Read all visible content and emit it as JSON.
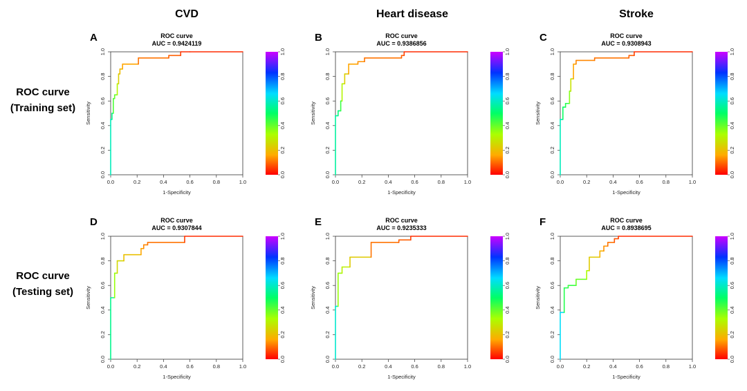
{
  "column_titles": [
    "CVD",
    "Heart disease",
    "Stroke"
  ],
  "row_titles": [
    {
      "line1": "ROC curve",
      "line2": "(Training set)"
    },
    {
      "line1": "ROC curve",
      "line2": "(Testing set)"
    }
  ],
  "chart_data": [
    {
      "type": "line",
      "panel": "A",
      "title": "ROC curve",
      "subtitle": "AUC = 0.9424119",
      "xlabel": "1-Specificity",
      "ylabel": "Sensitivity",
      "xlim": [
        0,
        1
      ],
      "ylim": [
        0,
        1
      ],
      "xticks": [
        "0.0",
        "0.2",
        "0.4",
        "0.6",
        "0.8",
        "1.0"
      ],
      "yticks": [
        "0.0",
        "0.2",
        "0.4",
        "0.6",
        "0.8",
        "1.0"
      ],
      "colorbar": {
        "ticks": [
          "0.0",
          "0.2",
          "0.4",
          "0.6",
          "0.8",
          "1.0"
        ],
        "palette": "rainbow"
      },
      "series": [
        {
          "x": [
            0,
            0,
            0.01,
            0.01,
            0.02,
            0.02,
            0.03,
            0.03,
            0.05,
            0.05,
            0.06,
            0.06,
            0.07,
            0.07,
            0.09,
            0.09,
            0.13,
            0.13,
            0.21,
            0.21,
            0.44,
            0.44,
            0.53,
            0.53,
            0.6,
            1.0
          ],
          "y": [
            0,
            0.45,
            0.45,
            0.5,
            0.5,
            0.62,
            0.62,
            0.65,
            0.65,
            0.74,
            0.74,
            0.82,
            0.82,
            0.86,
            0.86,
            0.9,
            0.9,
            0.9,
            0.9,
            0.95,
            0.95,
            0.97,
            0.97,
            1.0,
            1.0,
            1.0
          ]
        }
      ]
    },
    {
      "type": "line",
      "panel": "B",
      "title": "ROC curve",
      "subtitle": "AUC = 0.9386856",
      "xlabel": "1-Specificity",
      "ylabel": "Sensitivity",
      "xlim": [
        0,
        1
      ],
      "ylim": [
        0,
        1
      ],
      "xticks": [
        "0.0",
        "0.2",
        "0.4",
        "0.6",
        "0.8",
        "1.0"
      ],
      "yticks": [
        "0.0",
        "0.2",
        "0.4",
        "0.6",
        "0.8",
        "1.0"
      ],
      "colorbar": {
        "ticks": [
          "0.0",
          "0.2",
          "0.4",
          "0.6",
          "0.8",
          "1.0"
        ],
        "palette": "rainbow"
      },
      "series": [
        {
          "x": [
            0,
            0,
            0.02,
            0.02,
            0.04,
            0.04,
            0.05,
            0.05,
            0.07,
            0.07,
            0.1,
            0.1,
            0.17,
            0.17,
            0.22,
            0.22,
            0.5,
            0.5,
            0.52,
            0.52,
            1.0
          ],
          "y": [
            0,
            0.48,
            0.48,
            0.52,
            0.52,
            0.6,
            0.6,
            0.74,
            0.74,
            0.82,
            0.82,
            0.9,
            0.9,
            0.92,
            0.92,
            0.95,
            0.95,
            0.97,
            0.97,
            1.0,
            1.0
          ]
        }
      ]
    },
    {
      "type": "line",
      "panel": "C",
      "title": "ROC curve",
      "subtitle": "AUC = 0.9308943",
      "xlabel": "1-Specificity",
      "ylabel": "Sensitivity",
      "xlim": [
        0,
        1
      ],
      "ylim": [
        0,
        1
      ],
      "xticks": [
        "0.0",
        "0.2",
        "0.4",
        "0.6",
        "0.8",
        "1.0"
      ],
      "yticks": [
        "0.0",
        "0.2",
        "0.4",
        "0.6",
        "0.8",
        "1.0"
      ],
      "colorbar": {
        "ticks": [
          "0.0",
          "0.2",
          "0.4",
          "0.6",
          "0.8",
          "1.0"
        ],
        "palette": "rainbow"
      },
      "series": [
        {
          "x": [
            0,
            0,
            0.02,
            0.02,
            0.04,
            0.04,
            0.07,
            0.07,
            0.08,
            0.08,
            0.1,
            0.1,
            0.12,
            0.12,
            0.26,
            0.26,
            0.52,
            0.52,
            0.56,
            0.56,
            1.0
          ],
          "y": [
            0,
            0.45,
            0.45,
            0.55,
            0.55,
            0.58,
            0.58,
            0.68,
            0.68,
            0.78,
            0.78,
            0.9,
            0.9,
            0.93,
            0.93,
            0.95,
            0.95,
            0.97,
            0.97,
            1.0,
            1.0
          ]
        }
      ]
    },
    {
      "type": "line",
      "panel": "D",
      "title": "ROC curve",
      "subtitle": "AUC = 0.9307844",
      "xlabel": "1-Specificity",
      "ylabel": "Sensitivity",
      "xlim": [
        0,
        1
      ],
      "ylim": [
        0,
        1
      ],
      "xticks": [
        "0.0",
        "0.2",
        "0.4",
        "0.6",
        "0.8",
        "1.0"
      ],
      "yticks": [
        "0.0",
        "0.2",
        "0.4",
        "0.6",
        "0.8",
        "1.0"
      ],
      "colorbar": {
        "ticks": [
          "0.0",
          "0.2",
          "0.4",
          "0.6",
          "0.8",
          "1.0"
        ],
        "palette": "rainbow"
      },
      "series": [
        {
          "x": [
            0,
            0,
            0.03,
            0.03,
            0.05,
            0.05,
            0.1,
            0.1,
            0.23,
            0.23,
            0.25,
            0.25,
            0.28,
            0.28,
            0.56,
            0.56,
            1.0
          ],
          "y": [
            0,
            0.5,
            0.5,
            0.7,
            0.7,
            0.8,
            0.8,
            0.85,
            0.85,
            0.9,
            0.9,
            0.93,
            0.93,
            0.95,
            0.95,
            1.0,
            1.0
          ]
        }
      ]
    },
    {
      "type": "line",
      "panel": "E",
      "title": "ROC curve",
      "subtitle": "AUC = 0.9235333",
      "xlabel": "1-Specificity",
      "ylabel": "Sensitivity",
      "xlim": [
        0,
        1
      ],
      "ylim": [
        0,
        1
      ],
      "xticks": [
        "0.0",
        "0.2",
        "0.4",
        "0.6",
        "0.8",
        "1.0"
      ],
      "yticks": [
        "0.0",
        "0.2",
        "0.4",
        "0.6",
        "0.8",
        "1.0"
      ],
      "colorbar": {
        "ticks": [
          "0.0",
          "0.2",
          "0.4",
          "0.6",
          "0.8",
          "1.0"
        ],
        "palette": "rainbow"
      },
      "series": [
        {
          "x": [
            0,
            0,
            0.02,
            0.02,
            0.05,
            0.05,
            0.11,
            0.11,
            0.27,
            0.27,
            0.48,
            0.48,
            0.57,
            0.57,
            1.0
          ],
          "y": [
            0,
            0.43,
            0.43,
            0.7,
            0.7,
            0.75,
            0.75,
            0.83,
            0.83,
            0.95,
            0.95,
            0.97,
            0.97,
            1.0,
            1.0
          ]
        }
      ]
    },
    {
      "type": "line",
      "panel": "F",
      "title": "ROC curve",
      "subtitle": "AUC = 0.8938695",
      "xlabel": "1-Specificity",
      "ylabel": "Sensitivity",
      "xlim": [
        0,
        1
      ],
      "ylim": [
        0,
        1
      ],
      "xticks": [
        "0.0",
        "0.2",
        "0.4",
        "0.6",
        "0.8",
        "1.0"
      ],
      "yticks": [
        "0.0",
        "0.2",
        "0.4",
        "0.6",
        "0.8",
        "1.0"
      ],
      "colorbar": {
        "ticks": [
          "0.0",
          "0.2",
          "0.4",
          "0.6",
          "0.8",
          "1.0"
        ],
        "palette": "rainbow"
      },
      "series": [
        {
          "x": [
            0,
            0,
            0.03,
            0.03,
            0.06,
            0.06,
            0.12,
            0.12,
            0.2,
            0.2,
            0.22,
            0.22,
            0.3,
            0.3,
            0.33,
            0.33,
            0.36,
            0.36,
            0.41,
            0.41,
            0.44,
            0.44,
            1.0
          ],
          "y": [
            0,
            0.38,
            0.38,
            0.58,
            0.58,
            0.6,
            0.6,
            0.65,
            0.65,
            0.72,
            0.72,
            0.83,
            0.83,
            0.88,
            0.88,
            0.92,
            0.92,
            0.95,
            0.95,
            0.98,
            0.98,
            1.0,
            1.0
          ]
        }
      ]
    }
  ]
}
